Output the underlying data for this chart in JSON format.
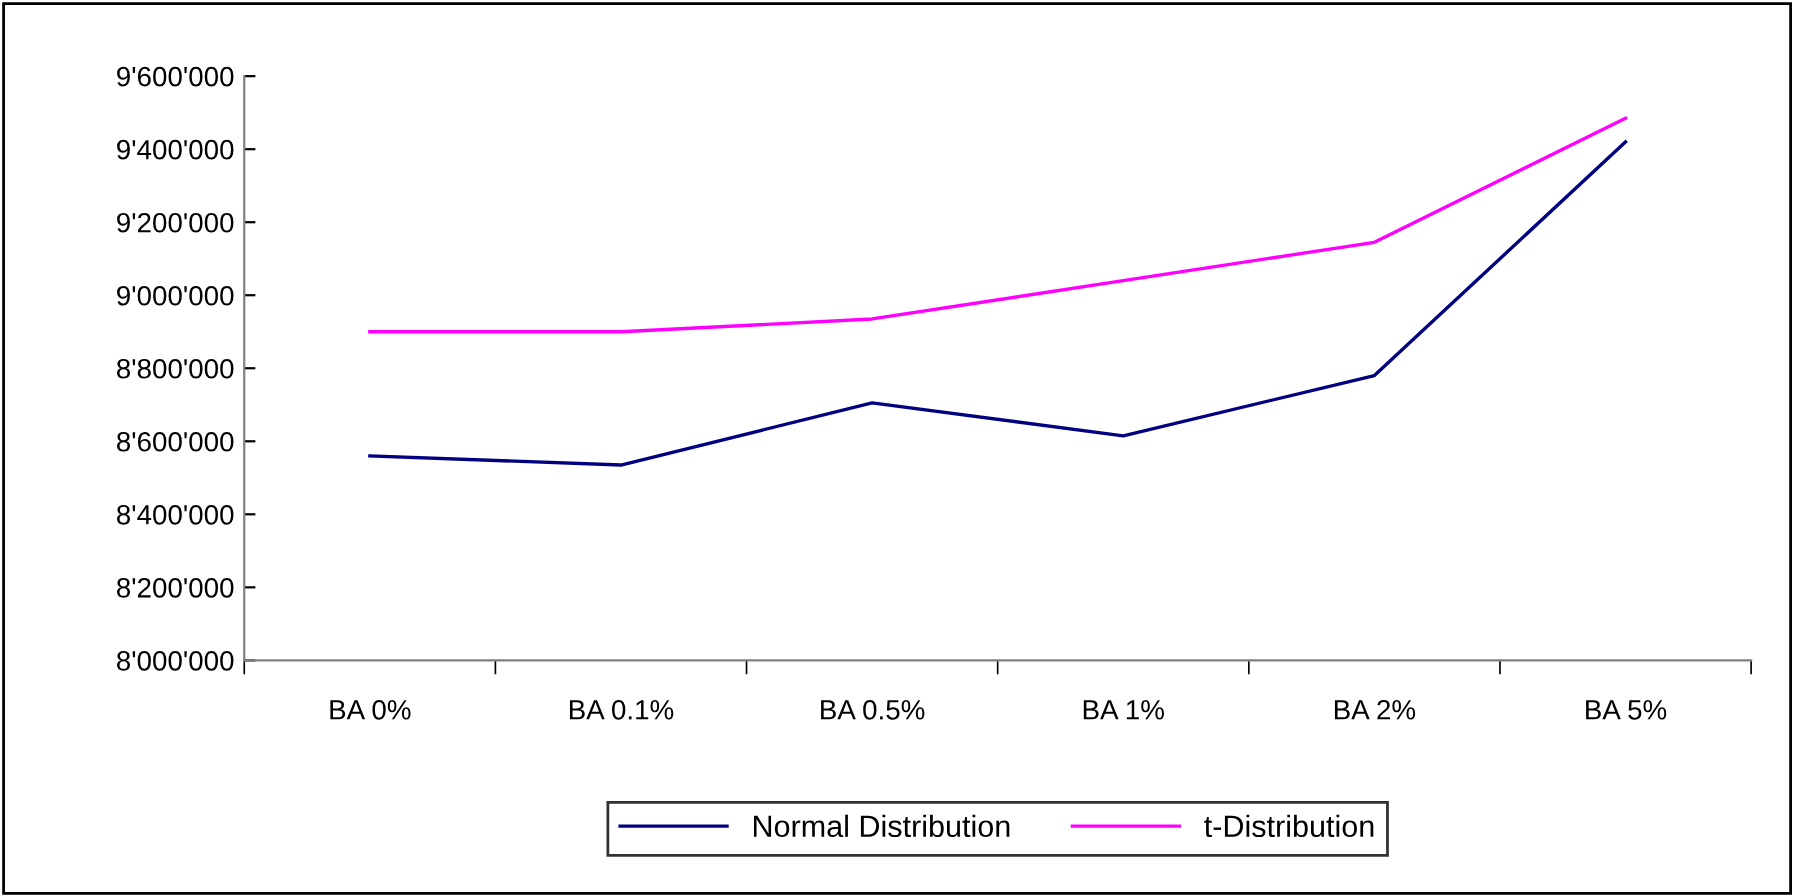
{
  "chart_data": {
    "type": "line",
    "categories": [
      "BA 0%",
      "BA 0.1%",
      "BA 0.5%",
      "BA 1%",
      "BA 2%",
      "BA 5%"
    ],
    "series": [
      {
        "name": "Normal Distribution",
        "color": "#000080",
        "values": [
          8560000,
          8535000,
          8705000,
          8615000,
          8780000,
          9420000
        ]
      },
      {
        "name": "t-Distribution",
        "color": "#ff00ff",
        "values": [
          8900000,
          8900000,
          8935000,
          9040000,
          9145000,
          9485000
        ]
      }
    ],
    "ylim": [
      8000000,
      9600000
    ],
    "yticks": [
      {
        "value": 8000000,
        "label": "8'000'000"
      },
      {
        "value": 8200000,
        "label": "8'200'000"
      },
      {
        "value": 8400000,
        "label": "8'400'000"
      },
      {
        "value": 8600000,
        "label": "8'600'000"
      },
      {
        "value": 8800000,
        "label": "8'800'000"
      },
      {
        "value": 9000000,
        "label": "9'000'000"
      },
      {
        "value": 9200000,
        "label": "9'200'000"
      },
      {
        "value": 9400000,
        "label": "9'400'000"
      },
      {
        "value": 9600000,
        "label": "9'600'000"
      }
    ],
    "grid": false,
    "legend": "bottom",
    "marker": "none",
    "line_style": "solid"
  }
}
